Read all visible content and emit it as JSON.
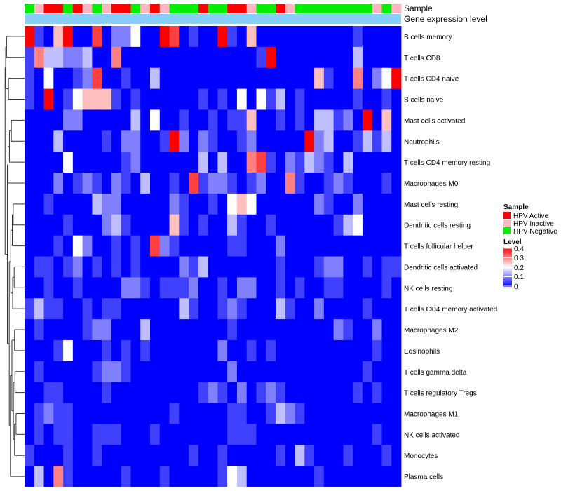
{
  "chart_data": {
    "type": "heatmap",
    "annotation_labels": [
      "Sample",
      "Gene expression level"
    ],
    "rows": [
      "B cells memory",
      "T cells CD8",
      "T cells CD4 naive",
      "B cells naive",
      "Mast cells activated",
      "Neutrophils",
      "T cells CD4 memory resting",
      "Macrophages M0",
      "Mast cells resting",
      "Dendritic cells resting",
      "T cells follicular helper",
      "Dendritic cells activated",
      "NK cells resting",
      "T cells CD4 memory activated",
      "Macrophages M2",
      "Eosinophils",
      "T cells gamma delta",
      "T cells regulatory  Tregs",
      "Macrophages M1",
      "NK cells activated",
      "Monocytes",
      "Plasma cells"
    ],
    "sample_groups": [
      "HPV Negative",
      "HPV Inactive",
      "HPV Active",
      "HPV Active",
      "HPV Negative",
      "HPV Active",
      "HPV Inactive",
      "HPV Negative",
      "HPV Inactive",
      "HPV Active",
      "HPV Active",
      "HPV Negative",
      "HPV Inactive",
      "HPV Active",
      "HPV Inactive",
      "HPV Negative",
      "HPV Negative",
      "HPV Negative",
      "HPV Active",
      "HPV Negative",
      "HPV Negative",
      "HPV Active",
      "HPV Active",
      "HPV Inactive",
      "HPV Negative",
      "HPV Negative",
      "HPV Active",
      "HPV Inactive",
      "HPV Negative",
      "HPV Negative",
      "HPV Negative",
      "HPV Negative",
      "HPV Negative",
      "HPV Negative",
      "HPV Negative",
      "HPV Negative",
      "HPV Inactive",
      "HPV Negative",
      "HPV Inactive"
    ],
    "values": [
      [
        0.4,
        0.05,
        0.0,
        0.25,
        0.4,
        0.0,
        0.0,
        0.35,
        0.0,
        0.1,
        0.1,
        0.2,
        0.0,
        0.0,
        0.4,
        0.35,
        0.0,
        0.05,
        0.0,
        0.0,
        0.4,
        0.05,
        0.0,
        0.25,
        0.0,
        0.0,
        0.0,
        0.0,
        0.0,
        0.0,
        0.0,
        0.0,
        0.0,
        0.0,
        0.05,
        0.0,
        0.0,
        0.0,
        0.0
      ],
      [
        0.05,
        0.3,
        0.15,
        0.15,
        0.1,
        0.1,
        0.15,
        0.0,
        0.0,
        0.3,
        0.0,
        0.0,
        0.0,
        0.0,
        0.0,
        0.0,
        0.0,
        0.0,
        0.0,
        0.0,
        0.0,
        0.0,
        0.0,
        0.0,
        0.05,
        0.4,
        0.0,
        0.0,
        0.0,
        0.0,
        0.0,
        0.0,
        0.0,
        0.0,
        0.15,
        0.0,
        0.0,
        0.0,
        0.0
      ],
      [
        0.05,
        0.0,
        0.2,
        0.0,
        0.0,
        0.05,
        0.1,
        0.35,
        0.0,
        0.0,
        0.05,
        0.0,
        0.0,
        0.15,
        0.0,
        0.0,
        0.0,
        0.0,
        0.0,
        0.0,
        0.0,
        0.0,
        0.0,
        0.0,
        0.0,
        0.0,
        0.0,
        0.0,
        0.0,
        0.0,
        0.25,
        0.05,
        0.0,
        0.0,
        0.3,
        0.0,
        0.1,
        0.2,
        0.4
      ],
      [
        0.05,
        0.0,
        0.4,
        0.0,
        0.05,
        0.2,
        0.25,
        0.25,
        0.25,
        0.05,
        0.0,
        0.05,
        0.0,
        0.0,
        0.0,
        0.0,
        0.0,
        0.0,
        0.05,
        0.0,
        0.05,
        0.0,
        0.2,
        0.0,
        0.2,
        0.05,
        0.15,
        0.0,
        0.05,
        0.0,
        0.0,
        0.0,
        0.0,
        0.0,
        0.05,
        0.0,
        0.0,
        0.05,
        0.0
      ],
      [
        0.0,
        0.0,
        0.0,
        0.0,
        0.1,
        0.1,
        0.0,
        0.0,
        0.0,
        0.0,
        0.0,
        0.15,
        0.0,
        0.2,
        0.0,
        0.0,
        0.05,
        0.0,
        0.0,
        0.05,
        0.0,
        0.05,
        0.05,
        0.25,
        0.0,
        0.0,
        0.05,
        0.0,
        0.05,
        0.0,
        0.15,
        0.15,
        0.05,
        0.1,
        0.0,
        0.4,
        0.0,
        0.25,
        0.0
      ],
      [
        0.0,
        0.0,
        0.0,
        0.15,
        0.0,
        0.0,
        0.0,
        0.0,
        0.05,
        0.0,
        0.1,
        0.1,
        0.0,
        0.0,
        0.05,
        0.4,
        0.1,
        0.0,
        0.1,
        0.05,
        0.0,
        0.0,
        0.05,
        0.1,
        0.0,
        0.0,
        0.0,
        0.0,
        0.0,
        0.4,
        0.1,
        0.15,
        0.0,
        0.0,
        0.05,
        0.15,
        0.05,
        0.15,
        0.0
      ],
      [
        0.0,
        0.0,
        0.0,
        0.0,
        0.2,
        0.0,
        0.0,
        0.0,
        0.0,
        0.0,
        0.05,
        0.1,
        0.0,
        0.0,
        0.0,
        0.0,
        0.0,
        0.0,
        0.15,
        0.0,
        0.15,
        0.0,
        0.0,
        0.3,
        0.35,
        0.05,
        0.0,
        0.1,
        0.05,
        0.15,
        0.1,
        0.05,
        0.0,
        0.15,
        0.0,
        0.0,
        0.0,
        0.0,
        0.0
      ],
      [
        0.0,
        0.0,
        0.0,
        0.1,
        0.0,
        0.05,
        0.1,
        0.05,
        0.0,
        0.1,
        0.05,
        0.0,
        0.15,
        0.0,
        0.0,
        0.05,
        0.0,
        0.35,
        0.05,
        0.1,
        0.1,
        0.05,
        0.0,
        0.05,
        0.1,
        0.0,
        0.0,
        0.3,
        0.05,
        0.0,
        0.0,
        0.05,
        0.1,
        0.05,
        0.0,
        0.0,
        0.0,
        0.05,
        0.0
      ],
      [
        0.0,
        0.0,
        0.05,
        0.0,
        0.0,
        0.0,
        0.0,
        0.15,
        0.1,
        0.1,
        0.0,
        0.0,
        0.0,
        0.0,
        0.0,
        0.1,
        0.05,
        0.0,
        0.0,
        0.05,
        0.0,
        0.2,
        0.25,
        0.2,
        0.0,
        0.0,
        0.0,
        0.0,
        0.0,
        0.0,
        0.1,
        0.05,
        0.0,
        0.0,
        0.1,
        0.0,
        0.0,
        0.0,
        0.0
      ],
      [
        0.0,
        0.0,
        0.0,
        0.0,
        0.05,
        0.0,
        0.0,
        0.0,
        0.1,
        0.15,
        0.05,
        0.0,
        0.0,
        0.0,
        0.0,
        0.25,
        0.05,
        0.0,
        0.05,
        0.0,
        0.0,
        0.15,
        0.05,
        0.0,
        0.0,
        0.05,
        0.0,
        0.0,
        0.0,
        0.0,
        0.0,
        0.0,
        0.05,
        0.15,
        0.2,
        0.0,
        0.0,
        0.0,
        0.0
      ],
      [
        0.0,
        0.0,
        0.0,
        0.05,
        0.0,
        0.2,
        0.1,
        0.0,
        0.0,
        0.05,
        0.0,
        0.05,
        0.0,
        0.35,
        0.1,
        0.05,
        0.0,
        0.0,
        0.0,
        0.0,
        0.0,
        0.05,
        0.05,
        0.0,
        0.0,
        0.0,
        0.1,
        0.0,
        0.0,
        0.0,
        0.0,
        0.0,
        0.0,
        0.0,
        0.0,
        0.0,
        0.0,
        0.0,
        0.0
      ],
      [
        0.0,
        0.05,
        0.05,
        0.0,
        0.05,
        0.1,
        0.0,
        0.05,
        0.0,
        0.05,
        0.0,
        0.05,
        0.0,
        0.0,
        0.0,
        0.0,
        0.1,
        0.05,
        0.15,
        0.0,
        0.0,
        0.0,
        0.0,
        0.0,
        0.0,
        0.0,
        0.05,
        0.0,
        0.0,
        0.0,
        0.05,
        0.1,
        0.1,
        0.0,
        0.0,
        0.05,
        0.0,
        0.05,
        0.05
      ],
      [
        0.0,
        0.0,
        0.05,
        0.0,
        0.0,
        0.05,
        0.0,
        0.0,
        0.0,
        0.0,
        0.1,
        0.1,
        0.05,
        0.0,
        0.05,
        0.05,
        0.05,
        0.1,
        0.0,
        0.0,
        0.05,
        0.0,
        0.1,
        0.1,
        0.0,
        0.0,
        0.05,
        0.0,
        0.05,
        0.0,
        0.0,
        0.05,
        0.05,
        0.0,
        0.0,
        0.0,
        0.0,
        0.05,
        0.0
      ],
      [
        0.05,
        0.15,
        0.05,
        0.05,
        0.0,
        0.0,
        0.05,
        0.0,
        0.05,
        0.05,
        0.0,
        0.0,
        0.0,
        0.0,
        0.0,
        0.0,
        0.15,
        0.05,
        0.0,
        0.0,
        0.05,
        0.1,
        0.05,
        0.0,
        0.0,
        0.0,
        0.15,
        0.05,
        0.0,
        0.0,
        0.1,
        0.0,
        0.0,
        0.0,
        0.0,
        0.05,
        0.0,
        0.0,
        0.0
      ],
      [
        0.0,
        0.05,
        0.0,
        0.0,
        0.0,
        0.0,
        0.05,
        0.1,
        0.1,
        0.0,
        0.0,
        0.0,
        0.15,
        0.0,
        0.0,
        0.0,
        0.0,
        0.0,
        0.0,
        0.0,
        0.0,
        0.05,
        0.0,
        0.0,
        0.0,
        0.0,
        0.0,
        0.0,
        0.0,
        0.0,
        0.0,
        0.0,
        0.1,
        0.05,
        0.0,
        0.0,
        0.1,
        0.0,
        0.0
      ],
      [
        0.0,
        0.0,
        0.0,
        0.05,
        0.2,
        0.0,
        0.0,
        0.0,
        0.05,
        0.0,
        0.05,
        0.0,
        0.05,
        0.0,
        0.0,
        0.0,
        0.0,
        0.0,
        0.0,
        0.0,
        0.1,
        0.0,
        0.0,
        0.05,
        0.0,
        0.05,
        0.0,
        0.0,
        0.0,
        0.0,
        0.0,
        0.0,
        0.0,
        0.0,
        0.0,
        0.0,
        0.05,
        0.0,
        0.0
      ],
      [
        0.0,
        0.05,
        0.0,
        0.0,
        0.0,
        0.0,
        0.0,
        0.05,
        0.1,
        0.1,
        0.05,
        0.0,
        0.0,
        0.0,
        0.0,
        0.0,
        0.0,
        0.0,
        0.0,
        0.0,
        0.0,
        0.1,
        0.0,
        0.0,
        0.0,
        0.0,
        0.0,
        0.0,
        0.0,
        0.0,
        0.0,
        0.0,
        0.0,
        0.0,
        0.0,
        0.05,
        0.0,
        0.0,
        0.0
      ],
      [
        0.0,
        0.0,
        0.05,
        0.05,
        0.0,
        0.0,
        0.0,
        0.0,
        0.05,
        0.0,
        0.0,
        0.0,
        0.0,
        0.0,
        0.0,
        0.0,
        0.0,
        0.0,
        0.05,
        0.1,
        0.05,
        0.0,
        0.1,
        0.0,
        0.05,
        0.1,
        0.05,
        0.0,
        0.0,
        0.0,
        0.0,
        0.0,
        0.0,
        0.0,
        0.05,
        0.0,
        0.05,
        0.0,
        0.0
      ],
      [
        0.0,
        0.05,
        0.1,
        0.05,
        0.05,
        0.0,
        0.0,
        0.0,
        0.0,
        0.0,
        0.0,
        0.0,
        0.0,
        0.0,
        0.0,
        0.05,
        0.0,
        0.0,
        0.0,
        0.0,
        0.0,
        0.05,
        0.05,
        0.0,
        0.0,
        0.05,
        0.15,
        0.1,
        0.05,
        0.0,
        0.0,
        0.0,
        0.0,
        0.0,
        0.0,
        0.0,
        0.0,
        0.0,
        0.0
      ],
      [
        0.0,
        0.05,
        0.0,
        0.05,
        0.05,
        0.0,
        0.0,
        0.05,
        0.05,
        0.05,
        0.0,
        0.0,
        0.0,
        0.05,
        0.0,
        0.0,
        0.0,
        0.0,
        0.0,
        0.0,
        0.0,
        0.05,
        0.05,
        0.05,
        0.0,
        0.0,
        0.0,
        0.0,
        0.0,
        0.0,
        0.0,
        0.0,
        0.0,
        0.0,
        0.0,
        0.0,
        0.05,
        0.0,
        0.0
      ],
      [
        0.05,
        0.0,
        0.0,
        0.0,
        0.05,
        0.0,
        0.0,
        0.05,
        0.0,
        0.0,
        0.0,
        0.0,
        0.0,
        0.0,
        0.0,
        0.0,
        0.0,
        0.05,
        0.0,
        0.0,
        0.05,
        0.0,
        0.0,
        0.0,
        0.0,
        0.0,
        0.05,
        0.0,
        0.15,
        0.05,
        0.0,
        0.0,
        0.0,
        0.05,
        0.0,
        0.0,
        0.0,
        0.05,
        0.0
      ],
      [
        0.0,
        0.15,
        0.0,
        0.3,
        0.05,
        0.0,
        0.0,
        0.0,
        0.0,
        0.0,
        0.05,
        0.0,
        0.0,
        0.0,
        0.05,
        0.0,
        0.0,
        0.0,
        0.0,
        0.0,
        0.05,
        0.2,
        0.15,
        0.0,
        0.0,
        0.0,
        0.0,
        0.0,
        0.0,
        0.0,
        0.05,
        0.0,
        0.0,
        0.0,
        0.0,
        0.0,
        0.0,
        0.0,
        0.0
      ]
    ],
    "legend": {
      "sample_title": "Sample",
      "sample_entries": [
        {
          "label": "HPV Active",
          "color": "#ff0000"
        },
        {
          "label": "HPV Inactive",
          "color": "#ffb6c1"
        },
        {
          "label": "HPV Negative",
          "color": "#00ee00"
        }
      ],
      "level_title": "Level",
      "level_ticks": [
        "0.4",
        "0.3",
        "0.2",
        "0.1",
        "0"
      ],
      "level_range": [
        0,
        0.4
      ],
      "colors": {
        "low": "#0000ff",
        "mid": "#ffffff",
        "high": "#ff0000"
      }
    },
    "gene_expression_color": "#87cefa"
  }
}
